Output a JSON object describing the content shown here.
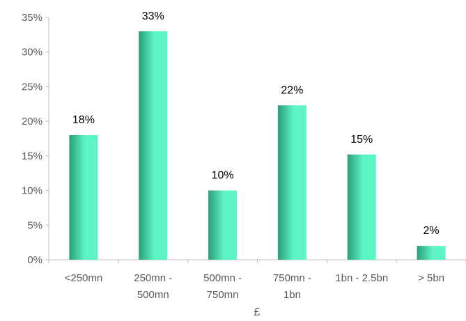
{
  "chart_data": {
    "type": "bar",
    "categories": [
      [
        "<250mn"
      ],
      [
        "250mn -",
        "500mn"
      ],
      [
        "500mn -",
        "750mn"
      ],
      [
        "750mn -",
        "1bn"
      ],
      [
        "1bn - 2.5bn"
      ],
      [
        "> 5bn"
      ]
    ],
    "values": [
      18,
      33,
      10,
      22.3,
      15.2,
      2
    ],
    "data_labels": [
      "18%",
      "33%",
      "10%",
      "22%",
      "15%",
      "2%"
    ],
    "yticks": [
      0,
      5,
      10,
      15,
      20,
      25,
      30,
      35
    ],
    "ytick_labels": [
      "0%",
      "5%",
      "10%",
      "15%",
      "20%",
      "25%",
      "30%",
      "35%"
    ],
    "ylim": [
      0,
      35
    ],
    "title": "",
    "xlabel": "£",
    "ylabel": "",
    "grid": false,
    "legend": "none",
    "colors": {
      "bar_light": "#5ef5c6",
      "bar_dark": "#2a9e78",
      "axis": "#bfbfbf"
    }
  }
}
